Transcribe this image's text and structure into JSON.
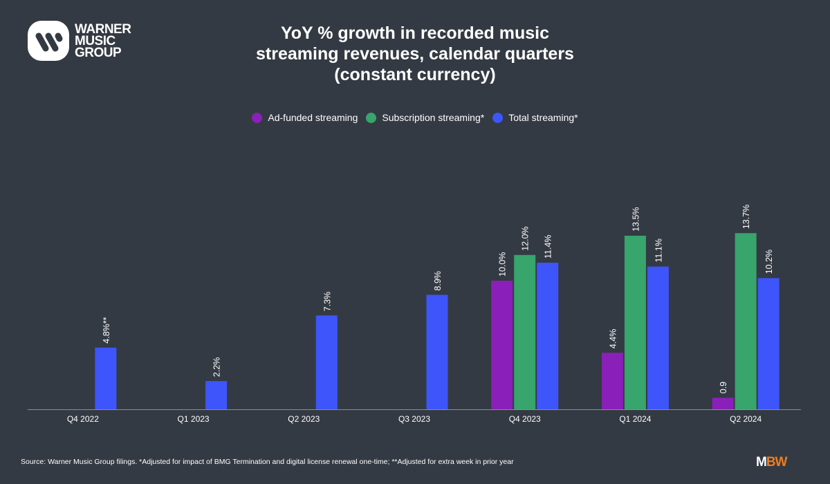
{
  "brand": {
    "logo_text": [
      "WARNER",
      "MUSIC",
      "GROUP"
    ],
    "mbw_logo": "MBW"
  },
  "colors": {
    "background": "#343a43",
    "ad_funded": "#8a20b9",
    "subscription": "#38a56c",
    "total": "#3d55fb"
  },
  "chart_data": {
    "type": "bar",
    "title": "YoY % growth in recorded music streaming revenues, calendar quarters (constant currency)",
    "title_lines": [
      "YoY % growth in recorded music",
      "streaming revenues, calendar quarters",
      "(constant currency)"
    ],
    "categories": [
      "Q4 2022",
      "Q1 2023",
      "Q2 2023",
      "Q3 2023",
      "Q4 2023",
      "Q1 2024",
      "Q2 2024"
    ],
    "series": [
      {
        "name": "Ad-funded streaming",
        "color": "#8a20b9",
        "values": [
          null,
          null,
          null,
          null,
          10.0,
          4.4,
          0.9
        ],
        "labels": [
          null,
          null,
          null,
          null,
          "10.0%",
          "4.4%",
          "0.9"
        ]
      },
      {
        "name": "Subscription streaming*",
        "color": "#38a56c",
        "values": [
          null,
          null,
          null,
          null,
          12.0,
          13.5,
          13.7
        ],
        "labels": [
          null,
          null,
          null,
          null,
          "12.0%",
          "13.5%",
          "13.7%"
        ]
      },
      {
        "name": "Total streaming*",
        "color": "#3d55fb",
        "values": [
          4.8,
          2.2,
          7.3,
          8.9,
          11.4,
          11.1,
          10.2
        ],
        "labels": [
          "4.8%**",
          "2.2%",
          "7.3%",
          "8.9%",
          "11.4%",
          "11.1%",
          "10.2%"
        ]
      }
    ],
    "xlabel": "",
    "ylabel": "",
    "ylim": [
      0,
      16
    ],
    "grid": false,
    "legend": "top-center"
  },
  "footer": {
    "source": "Source: Warner Music Group filings. *Adjusted for impact of BMG Termination and digital license renewal one-time; **Adjusted for extra week in prior year"
  }
}
